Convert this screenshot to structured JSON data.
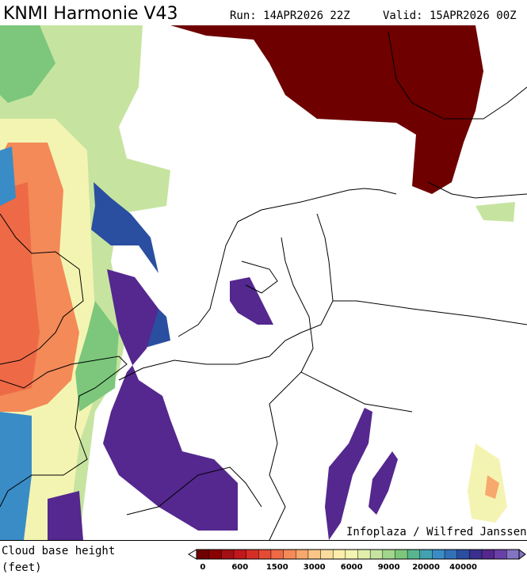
{
  "header": {
    "title": "KNMI Harmonie V43",
    "run": "Run: 14APR2026 22Z",
    "valid": "Valid: 15APR2026 00Z"
  },
  "map": {
    "credit": "Infoplaza / Wilfred Janssen"
  },
  "legend": {
    "title": "Cloud base height",
    "unit": "(feet)",
    "labels": [
      "0",
      "600",
      "1500",
      "3000",
      "6000",
      "9000",
      "20000",
      "40000"
    ],
    "colors": [
      "#6e0000",
      "#8b0000",
      "#a50f15",
      "#c0181c",
      "#d42e26",
      "#e44a34",
      "#ee6a46",
      "#f38a58",
      "#f7a86c",
      "#f9c688",
      "#fadd9e",
      "#fbeeaa",
      "#f4f4b2",
      "#e2efac",
      "#c6e4a0",
      "#a2d68c",
      "#7cc77c",
      "#58b68e",
      "#42a2b2",
      "#3a8cc6",
      "#3270b8",
      "#2a4ea0",
      "#3a2e8e",
      "#54288e",
      "#6a40a8",
      "#8474c4"
    ]
  }
}
